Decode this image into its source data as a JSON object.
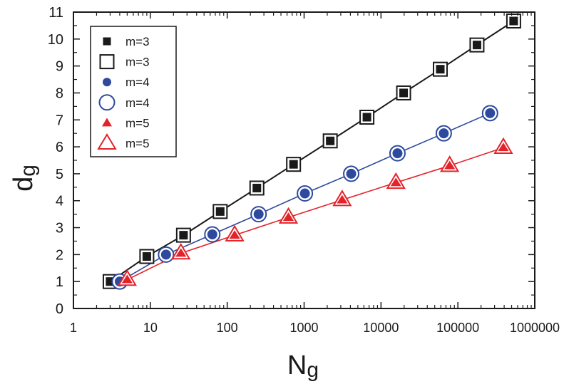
{
  "chart_data": {
    "type": "scatter",
    "xscale": "log",
    "xlim": [
      1,
      1000000
    ],
    "ylim": [
      0,
      11
    ],
    "xlabel": "N",
    "xlabel_sub": "g",
    "ylabel": "d",
    "ylabel_sub": "g",
    "xticks": [
      "1",
      "10",
      "100",
      "1000",
      "10000",
      "100000",
      "1000000"
    ],
    "yticks": [
      "0",
      "1",
      "2",
      "3",
      "4",
      "5",
      "6",
      "7",
      "8",
      "9",
      "10",
      "11"
    ],
    "grid": false,
    "legend_position": "top-left",
    "legend": [
      {
        "label": "m=3",
        "marker": "filled-square",
        "color": "#1a1a1a"
      },
      {
        "label": "m=3",
        "marker": "open-square",
        "color": "#1a1a1a"
      },
      {
        "label": "m=4",
        "marker": "filled-circle",
        "color": "#2e4a9e"
      },
      {
        "label": "m=4",
        "marker": "open-circle",
        "color": "#2e4a9e"
      },
      {
        "label": "m=5",
        "marker": "filled-triangle",
        "color": "#e3232a"
      },
      {
        "label": "m=5",
        "marker": "open-triangle",
        "color": "#e3232a"
      }
    ],
    "series": [
      {
        "name": "m=3",
        "color": "#1a1a1a",
        "x": [
          3,
          9,
          27,
          81,
          243,
          729,
          2187,
          6561,
          19683,
          59049,
          177147,
          531441
        ],
        "y": [
          1.0,
          1.93,
          2.72,
          3.6,
          4.47,
          5.35,
          6.22,
          7.1,
          8.0,
          8.88,
          9.78,
          10.67
        ]
      },
      {
        "name": "m=4",
        "color": "#2e4a9e",
        "x": [
          4,
          16,
          64,
          256,
          1024,
          4096,
          16384,
          65536,
          262144
        ],
        "y": [
          1.0,
          2.0,
          2.75,
          3.5,
          4.27,
          5.0,
          5.76,
          6.5,
          7.25
        ]
      },
      {
        "name": "m=5",
        "color": "#e3232a",
        "x": [
          5,
          25,
          125,
          625,
          3125,
          15625,
          78125,
          390625
        ],
        "y": [
          1.07,
          2.05,
          2.72,
          3.38,
          4.03,
          4.67,
          5.3,
          5.97
        ]
      }
    ]
  }
}
